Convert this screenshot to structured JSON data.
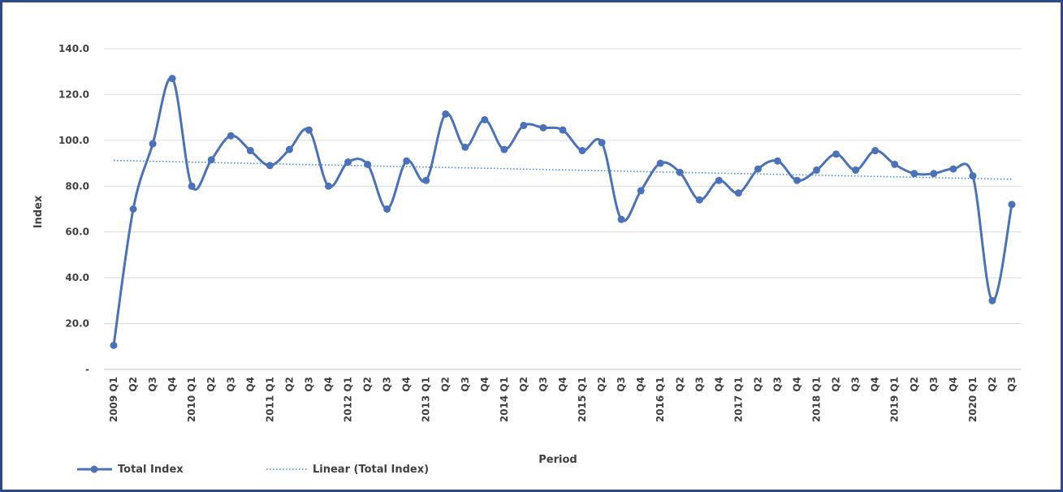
{
  "chart_data": {
    "type": "line",
    "title": "",
    "xlabel": "Period",
    "ylabel": "Index",
    "ylim": [
      0,
      140
    ],
    "y_ticks": [
      {
        "value": 0,
        "label": "-"
      },
      {
        "value": 20,
        "label": "20.0"
      },
      {
        "value": 40,
        "label": "40.0"
      },
      {
        "value": 60,
        "label": "60.0"
      },
      {
        "value": 80,
        "label": "80.0"
      },
      {
        "value": 100,
        "label": "100.0"
      },
      {
        "value": 120,
        "label": "120.0"
      },
      {
        "value": 140,
        "label": "140.0"
      }
    ],
    "grid": true,
    "categories": [
      "2009 Q1",
      "Q2",
      "Q3",
      "Q4",
      "2010 Q1",
      "Q2",
      "Q3",
      "Q4",
      "2011 Q1",
      "Q2",
      "Q3",
      "Q4",
      "2012 Q1",
      "Q2",
      "Q3",
      "Q4",
      "2013 Q1",
      "Q2",
      "Q3",
      "Q4",
      "2014 Q1",
      "Q2",
      "Q3",
      "Q4",
      "2015 Q1",
      "Q2",
      "Q3",
      "Q4",
      "2016 Q1",
      "Q2",
      "Q3",
      "Q4",
      "2017 Q1",
      "Q2",
      "Q3",
      "Q4",
      "2018 Q1",
      "Q2",
      "Q3",
      "Q4",
      "2019 Q1",
      "Q2",
      "Q3",
      "Q4",
      "2020 Q1",
      "Q2",
      "Q3"
    ],
    "series": [
      {
        "name": "Total Index",
        "color": "#4a72b8",
        "style": "solid-with-markers",
        "values": [
          10.5,
          70.0,
          98.5,
          127.0,
          80.0,
          91.5,
          102.0,
          95.5,
          89.0,
          96.0,
          104.5,
          80.0,
          90.5,
          89.5,
          70.0,
          91.0,
          82.5,
          111.5,
          97.0,
          109.0,
          96.0,
          106.5,
          105.5,
          104.5,
          95.5,
          99.0,
          65.5,
          78.0,
          90.0,
          86.0,
          74.0,
          82.5,
          77.0,
          87.5,
          91.0,
          82.5,
          87.0,
          94.0,
          87.0,
          95.5,
          89.5,
          85.5,
          85.5,
          87.5,
          84.5,
          30.0,
          72.0
        ]
      },
      {
        "name": "Linear (Total Index)",
        "color": "#4a90d9",
        "style": "dotted-trendline",
        "start_value": 91.2,
        "end_value": 83.0
      }
    ],
    "legend": {
      "placement": "bottom-left",
      "items": [
        "Total Index",
        "Linear (Total Index)"
      ]
    }
  }
}
